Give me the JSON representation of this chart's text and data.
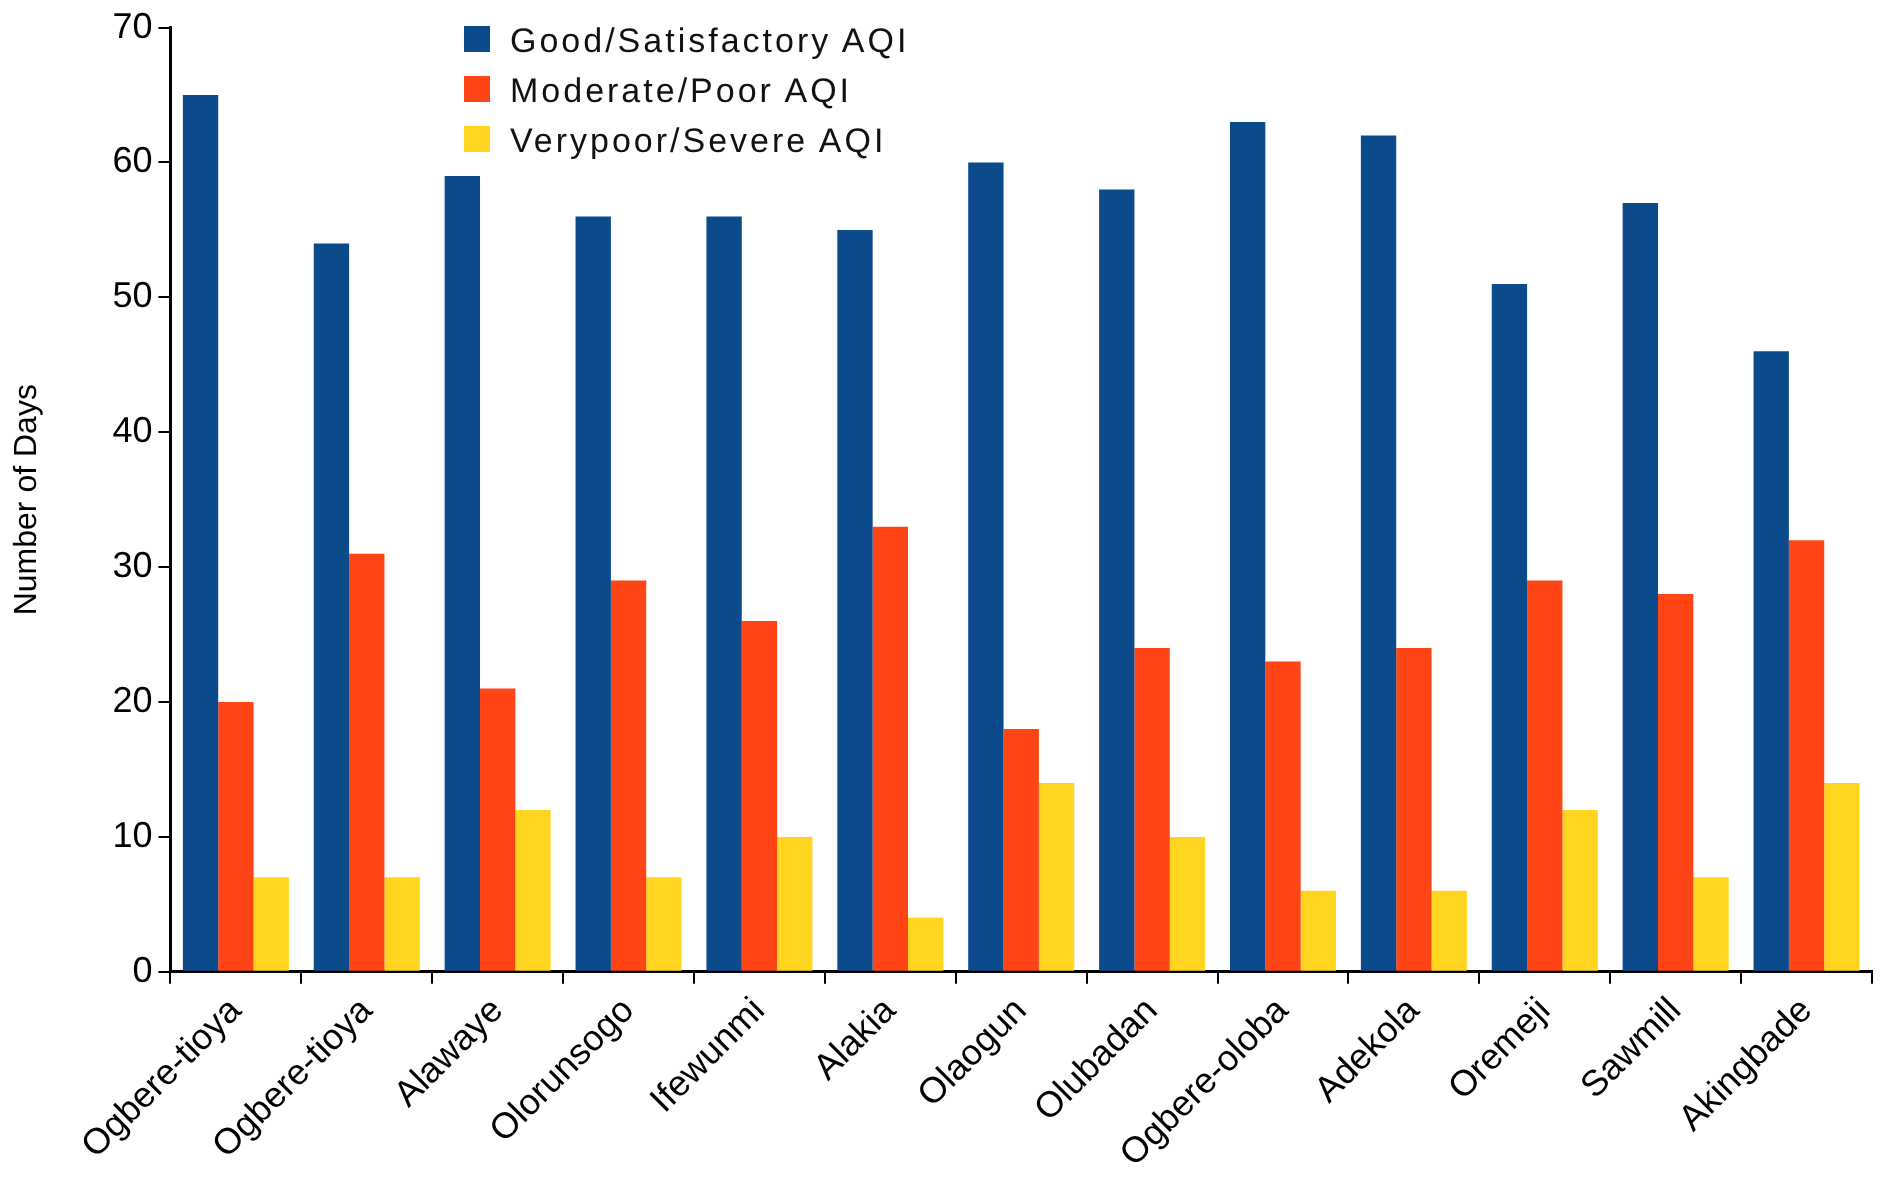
{
  "chart_data": {
    "type": "bar",
    "ylabel": "Number of Days",
    "categories": [
      "Ogbere-tioya",
      "Ogbere-tioya",
      "Alawaye",
      "Olorunsogo",
      "Ifewunmi",
      "Alakia",
      "Olaogun",
      "Olubadan",
      "Ogbere-oloba",
      "Adekola",
      "Oremeji",
      "Sawmill",
      "Akingbade"
    ],
    "series": [
      {
        "name": "Good/Satisfactory AQI",
        "color": "#0b4a8b",
        "values": [
          65,
          54,
          59,
          56,
          56,
          55,
          60,
          58,
          63,
          62,
          51,
          57,
          46
        ]
      },
      {
        "name": "Moderate/Poor AQI",
        "color": "#ff4516",
        "values": [
          20,
          31,
          21,
          29,
          26,
          33,
          18,
          24,
          23,
          24,
          29,
          28,
          32
        ]
      },
      {
        "name": "Verypoor/Severe AQI",
        "color": "#ffd520",
        "values": [
          7,
          7,
          12,
          7,
          10,
          4,
          14,
          10,
          6,
          6,
          12,
          7,
          14
        ]
      }
    ],
    "ylim": [
      0,
      70
    ],
    "yticks": [
      0,
      10,
      20,
      30,
      40,
      50,
      60,
      70
    ],
    "grid": false,
    "legend": "top"
  }
}
